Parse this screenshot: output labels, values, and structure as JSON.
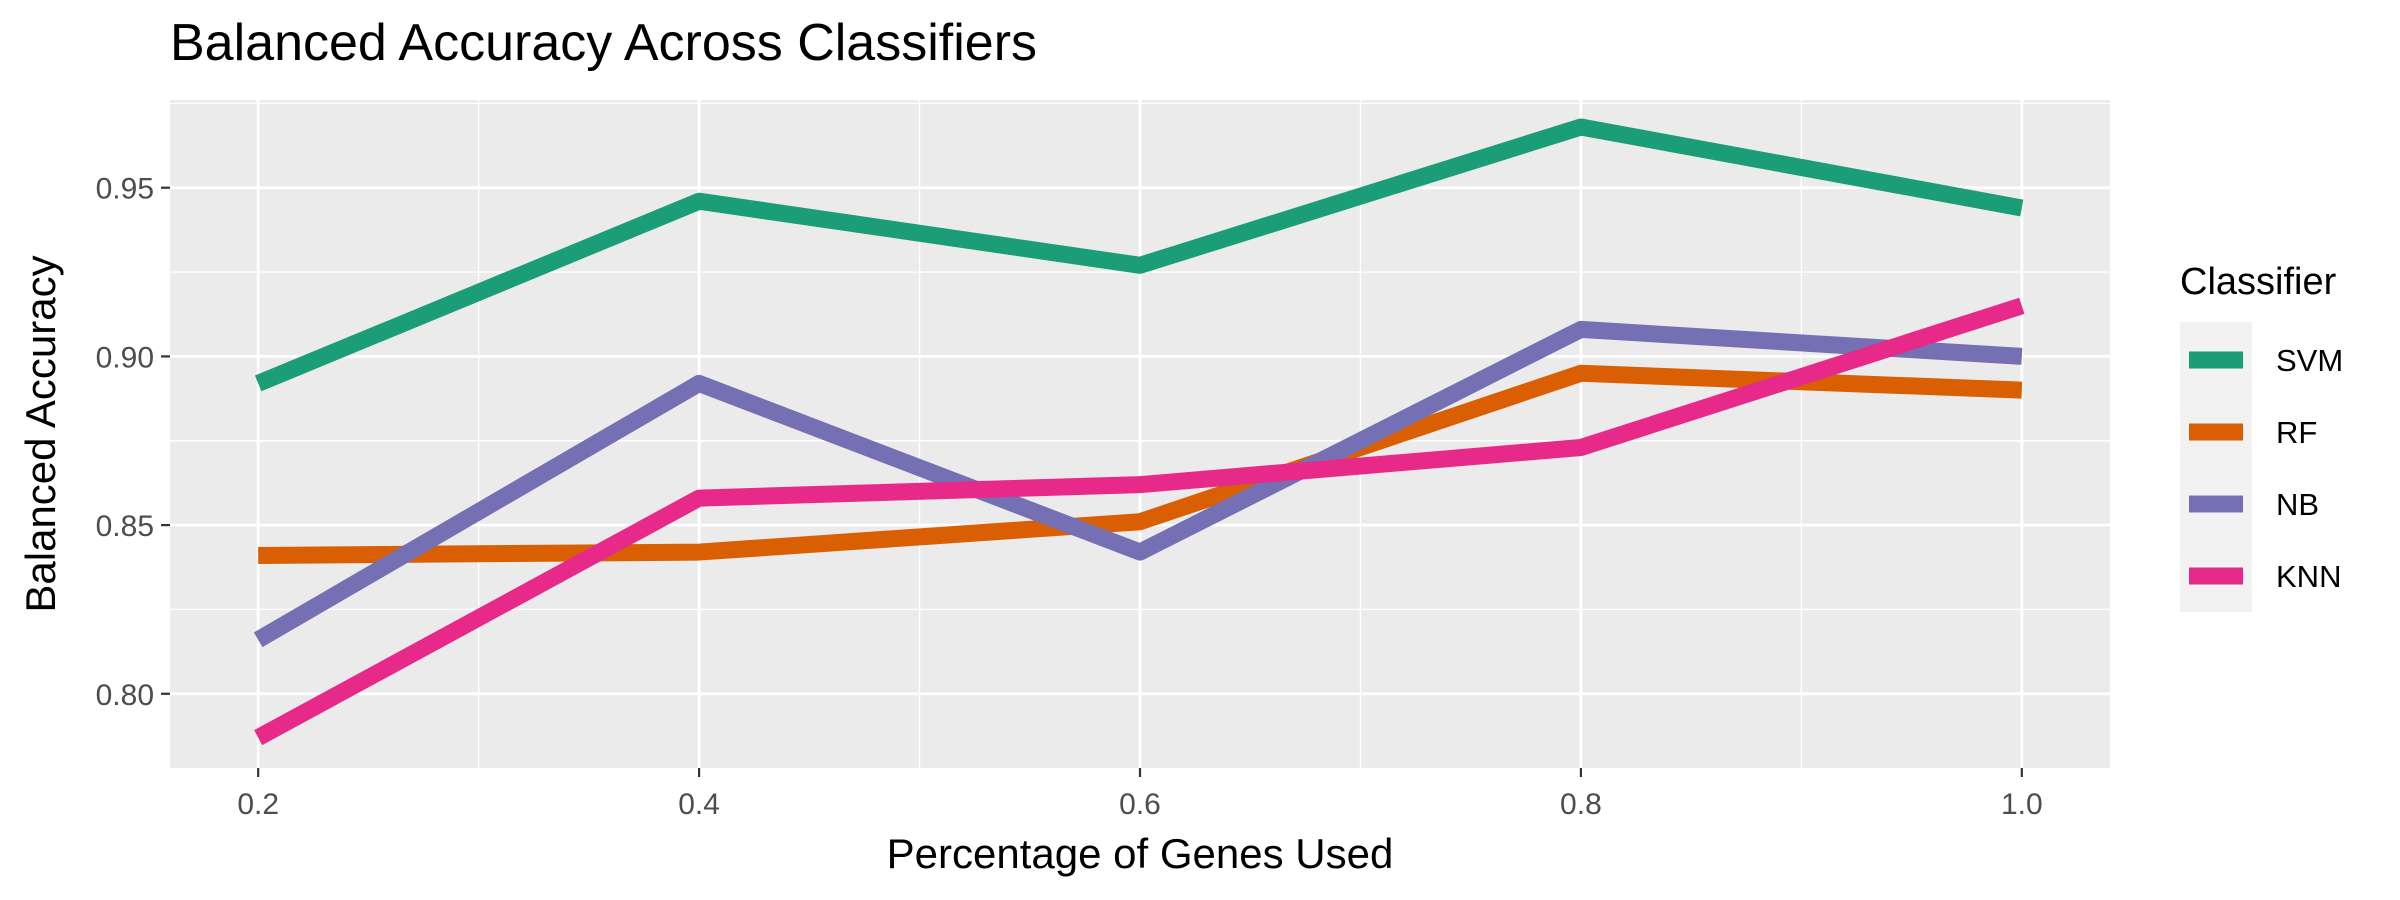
{
  "chart_data": {
    "type": "line",
    "title": "Balanced Accuracy Across Classifiers",
    "xlabel": "Percentage of Genes Used",
    "ylabel": "Balanced Accuracy",
    "x": [
      0.2,
      0.4,
      0.6,
      0.8,
      1.0
    ],
    "x_ticks": [
      "0.2",
      "0.4",
      "0.6",
      "0.8",
      "1.0"
    ],
    "y_ticks": [
      "0.80",
      "0.85",
      "0.90",
      "0.95"
    ],
    "xlim": [
      0.16,
      1.04
    ],
    "ylim": [
      0.778,
      0.976
    ],
    "grid": true,
    "legend": {
      "title": "Classifier",
      "placement": "right"
    },
    "series": [
      {
        "name": "SVM",
        "color": "#1b9e77",
        "values": [
          0.892,
          0.946,
          0.927,
          0.968,
          0.944
        ]
      },
      {
        "name": "RF",
        "color": "#d95f02",
        "values": [
          0.841,
          0.842,
          0.851,
          0.895,
          0.89
        ]
      },
      {
        "name": "NB",
        "color": "#7570b3",
        "values": [
          0.816,
          0.892,
          0.842,
          0.908,
          0.9
        ]
      },
      {
        "name": "KNN",
        "color": "#e7298a",
        "values": [
          0.787,
          0.858,
          0.862,
          0.873,
          0.915
        ]
      }
    ]
  }
}
